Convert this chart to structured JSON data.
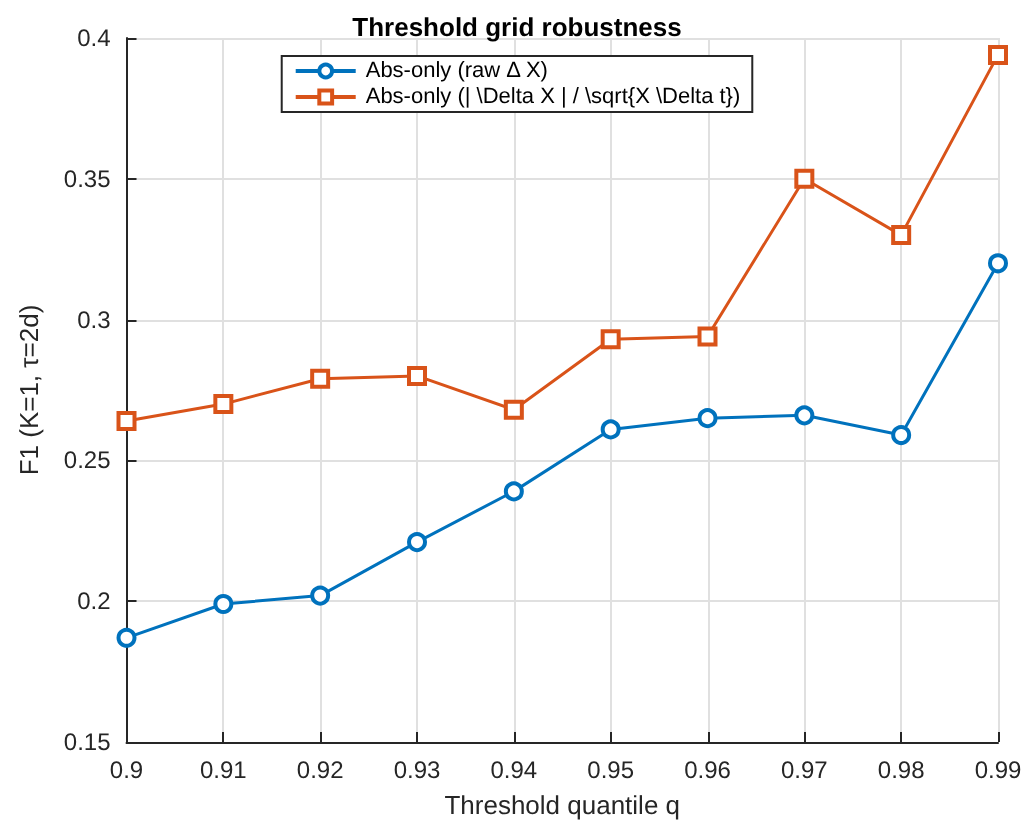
{
  "chart_data": {
    "type": "line",
    "title": "Threshold grid robustness",
    "xlabel": "Threshold quantile q",
    "ylabel": "F1 (K=1, τ=2d)",
    "x": [
      0.9,
      0.91,
      0.92,
      0.93,
      0.94,
      0.95,
      0.96,
      0.97,
      0.98,
      0.99
    ],
    "series": [
      {
        "name": "Abs-only (raw Δ X)",
        "color": "#0072bd",
        "marker": "circle",
        "values": [
          0.187,
          0.199,
          0.202,
          0.221,
          0.239,
          0.261,
          0.265,
          0.266,
          0.259,
          0.32
        ]
      },
      {
        "name": "Abs-only (| \\Delta X | / \\sqrt{X \\Delta t})",
        "color": "#d95319",
        "marker": "square",
        "values": [
          0.264,
          0.27,
          0.279,
          0.28,
          0.268,
          0.293,
          0.294,
          0.35,
          0.33,
          0.394
        ]
      }
    ],
    "xlim": [
      0.9,
      0.99
    ],
    "xticks": [
      0.9,
      0.91,
      0.92,
      0.93,
      0.94,
      0.95,
      0.96,
      0.97,
      0.98,
      0.99
    ],
    "ylim": [
      0.15,
      0.4
    ],
    "yticks": [
      0.15,
      0.2,
      0.25,
      0.3,
      0.35,
      0.4
    ],
    "grid": true,
    "legend": "top",
    "line_style": "solid"
  }
}
